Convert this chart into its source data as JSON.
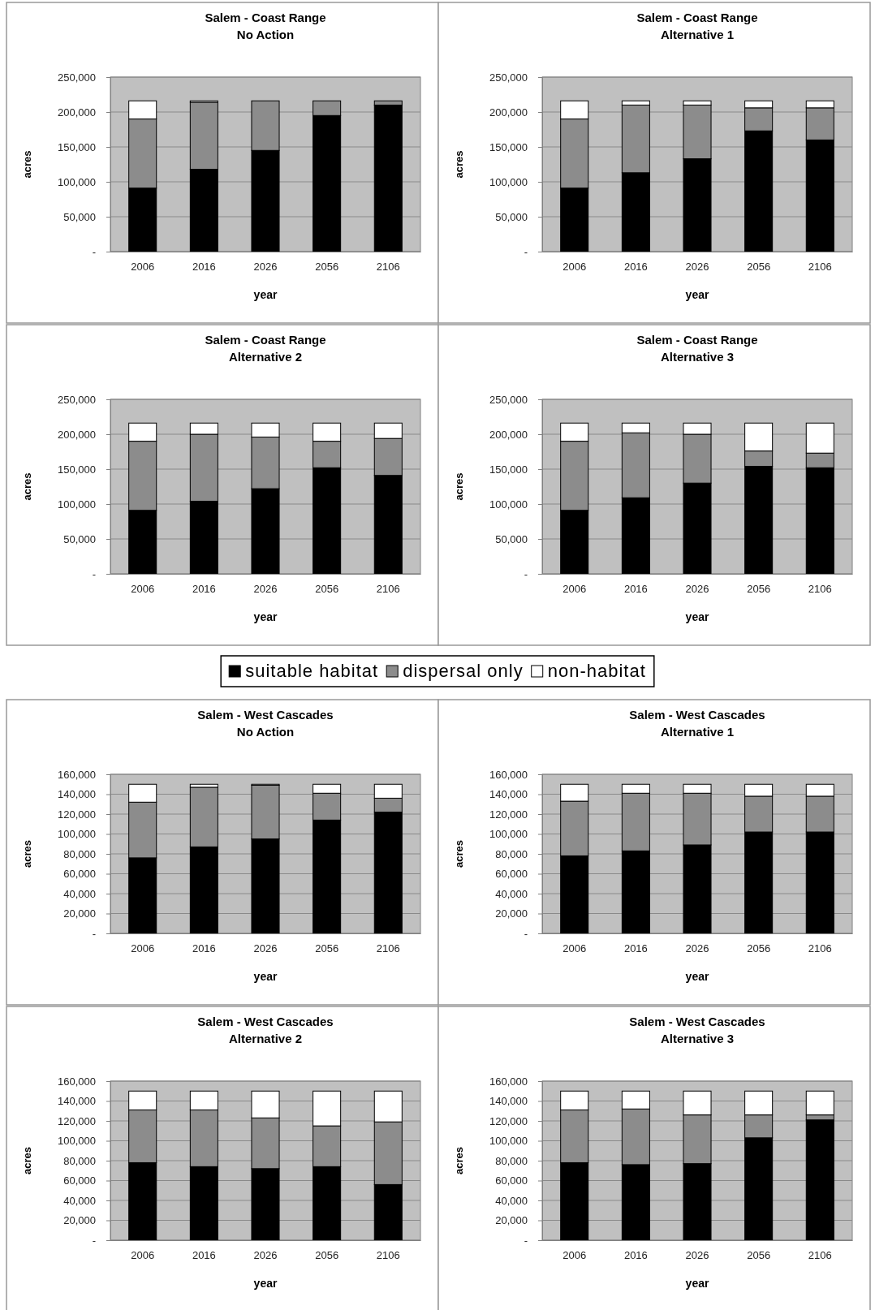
{
  "chart_data": [
    {
      "type": "bar",
      "stacked": true,
      "title": "Salem - Coast Range\nNo Action",
      "xlabel": "year",
      "ylabel": "acres",
      "categories": [
        "2006",
        "2016",
        "2026",
        "2056",
        "2106"
      ],
      "ylim": [
        0,
        250000
      ],
      "yticks": [
        {
          "value": 0,
          "label": "-"
        },
        {
          "value": 50000,
          "label": "50,000"
        },
        {
          "value": 100000,
          "label": "100,000"
        },
        {
          "value": 150000,
          "label": "150,000"
        },
        {
          "value": 200000,
          "label": "200,000"
        },
        {
          "value": 250000,
          "label": "250,000"
        }
      ],
      "grid": "y",
      "series": [
        {
          "color": "#000000",
          "values": [
            91000,
            118000,
            145000,
            195000,
            210000
          ]
        },
        {
          "color": "#8c8c8c",
          "values": [
            99000,
            96000,
            71000,
            21000,
            6000
          ]
        },
        {
          "color": "#ffffff",
          "values": [
            26000,
            2000,
            0,
            0,
            0
          ]
        }
      ]
    },
    {
      "type": "bar",
      "stacked": true,
      "title": "Salem - Coast Range\nAlternative 1",
      "xlabel": "year",
      "ylabel": "acres",
      "categories": [
        "2006",
        "2016",
        "2026",
        "2056",
        "2106"
      ],
      "ylim": [
        0,
        250000
      ],
      "yticks": [
        {
          "value": 0,
          "label": "-"
        },
        {
          "value": 50000,
          "label": "50,000"
        },
        {
          "value": 100000,
          "label": "100,000"
        },
        {
          "value": 150000,
          "label": "150,000"
        },
        {
          "value": 200000,
          "label": "200,000"
        },
        {
          "value": 250000,
          "label": "250,000"
        }
      ],
      "grid": "y",
      "series": [
        {
          "color": "#000000",
          "values": [
            91000,
            113000,
            133000,
            173000,
            160000
          ]
        },
        {
          "color": "#8c8c8c",
          "values": [
            99000,
            97000,
            77000,
            33000,
            46000
          ]
        },
        {
          "color": "#ffffff",
          "values": [
            26000,
            6000,
            6000,
            10000,
            10000
          ]
        }
      ]
    },
    {
      "type": "bar",
      "stacked": true,
      "title": "Salem - Coast Range\nAlternative 2",
      "xlabel": "year",
      "ylabel": "acres",
      "categories": [
        "2006",
        "2016",
        "2026",
        "2056",
        "2106"
      ],
      "ylim": [
        0,
        250000
      ],
      "yticks": [
        {
          "value": 0,
          "label": "-"
        },
        {
          "value": 50000,
          "label": "50,000"
        },
        {
          "value": 100000,
          "label": "100,000"
        },
        {
          "value": 150000,
          "label": "150,000"
        },
        {
          "value": 200000,
          "label": "200,000"
        },
        {
          "value": 250000,
          "label": "250,000"
        }
      ],
      "grid": "y",
      "series": [
        {
          "color": "#000000",
          "values": [
            91000,
            104000,
            122000,
            152000,
            141000
          ]
        },
        {
          "color": "#8c8c8c",
          "values": [
            99000,
            96000,
            74000,
            38000,
            53000
          ]
        },
        {
          "color": "#ffffff",
          "values": [
            26000,
            16000,
            20000,
            26000,
            22000
          ]
        }
      ]
    },
    {
      "type": "bar",
      "stacked": true,
      "title": "Salem - Coast Range\nAlternative 3",
      "xlabel": "year",
      "ylabel": "acres",
      "categories": [
        "2006",
        "2016",
        "2026",
        "2056",
        "2106"
      ],
      "ylim": [
        0,
        250000
      ],
      "yticks": [
        {
          "value": 0,
          "label": "-"
        },
        {
          "value": 50000,
          "label": "50,000"
        },
        {
          "value": 100000,
          "label": "100,000"
        },
        {
          "value": 150000,
          "label": "150,000"
        },
        {
          "value": 200000,
          "label": "200,000"
        },
        {
          "value": 250000,
          "label": "250,000"
        }
      ],
      "grid": "y",
      "legend": "bottom",
      "series": [
        {
          "name": "suitable habitat",
          "color": "#000000",
          "values": [
            91000,
            109000,
            130000,
            154000,
            152000
          ]
        },
        {
          "name": "dispersal only",
          "color": "#8c8c8c",
          "values": [
            99000,
            93000,
            70000,
            22000,
            21000
          ]
        },
        {
          "name": "non-habitat",
          "color": "#ffffff",
          "values": [
            26000,
            14000,
            16000,
            40000,
            43000
          ]
        }
      ]
    },
    {
      "type": "bar",
      "stacked": true,
      "title": "Salem - West Cascades\nNo Action",
      "xlabel": "year",
      "ylabel": "acres",
      "categories": [
        "2006",
        "2016",
        "2026",
        "2056",
        "2106"
      ],
      "ylim": [
        0,
        160000
      ],
      "yticks": [
        {
          "value": 0,
          "label": "-"
        },
        {
          "value": 20000,
          "label": "20,000"
        },
        {
          "value": 40000,
          "label": "40,000"
        },
        {
          "value": 60000,
          "label": "60,000"
        },
        {
          "value": 80000,
          "label": "80,000"
        },
        {
          "value": 100000,
          "label": "100,000"
        },
        {
          "value": 120000,
          "label": "120,000"
        },
        {
          "value": 140000,
          "label": "140,000"
        },
        {
          "value": 160000,
          "label": "160,000"
        }
      ],
      "grid": "y",
      "series": [
        {
          "color": "#000000",
          "values": [
            76000,
            87000,
            95000,
            114000,
            122000
          ]
        },
        {
          "color": "#8c8c8c",
          "values": [
            56000,
            60000,
            54000,
            27000,
            14000
          ]
        },
        {
          "color": "#ffffff",
          "values": [
            18000,
            3000,
            1000,
            9000,
            14000
          ]
        }
      ]
    },
    {
      "type": "bar",
      "stacked": true,
      "title": "Salem - West Cascades\nAlternative 1",
      "xlabel": "year",
      "ylabel": "acres",
      "categories": [
        "2006",
        "2016",
        "2026",
        "2056",
        "2106"
      ],
      "ylim": [
        0,
        160000
      ],
      "yticks": [
        {
          "value": 0,
          "label": "-"
        },
        {
          "value": 20000,
          "label": "20,000"
        },
        {
          "value": 40000,
          "label": "40,000"
        },
        {
          "value": 60000,
          "label": "60,000"
        },
        {
          "value": 80000,
          "label": "80,000"
        },
        {
          "value": 100000,
          "label": "100,000"
        },
        {
          "value": 120000,
          "label": "120,000"
        },
        {
          "value": 140000,
          "label": "140,000"
        },
        {
          "value": 160000,
          "label": "160,000"
        }
      ],
      "grid": "y",
      "series": [
        {
          "color": "#000000",
          "values": [
            78000,
            83000,
            89000,
            102000,
            102000
          ]
        },
        {
          "color": "#8c8c8c",
          "values": [
            55000,
            58000,
            52000,
            36000,
            36000
          ]
        },
        {
          "color": "#ffffff",
          "values": [
            17000,
            9000,
            9000,
            12000,
            12000
          ]
        }
      ]
    },
    {
      "type": "bar",
      "stacked": true,
      "title": "Salem - West Cascades\nAlternative 2",
      "xlabel": "year",
      "ylabel": "acres",
      "categories": [
        "2006",
        "2016",
        "2026",
        "2056",
        "2106"
      ],
      "ylim": [
        0,
        160000
      ],
      "yticks": [
        {
          "value": 0,
          "label": "-"
        },
        {
          "value": 20000,
          "label": "20,000"
        },
        {
          "value": 40000,
          "label": "40,000"
        },
        {
          "value": 60000,
          "label": "60,000"
        },
        {
          "value": 80000,
          "label": "80,000"
        },
        {
          "value": 100000,
          "label": "100,000"
        },
        {
          "value": 120000,
          "label": "120,000"
        },
        {
          "value": 140000,
          "label": "140,000"
        },
        {
          "value": 160000,
          "label": "160,000"
        }
      ],
      "grid": "y",
      "series": [
        {
          "color": "#000000",
          "values": [
            78000,
            74000,
            72000,
            74000,
            56000
          ]
        },
        {
          "color": "#8c8c8c",
          "values": [
            53000,
            57000,
            51000,
            41000,
            63000
          ]
        },
        {
          "color": "#ffffff",
          "values": [
            19000,
            19000,
            27000,
            35000,
            31000
          ]
        }
      ]
    },
    {
      "type": "bar",
      "stacked": true,
      "title": "Salem - West Cascades\nAlternative 3",
      "xlabel": "year",
      "ylabel": "acres",
      "categories": [
        "2006",
        "2016",
        "2026",
        "2056",
        "2106"
      ],
      "ylim": [
        0,
        160000
      ],
      "yticks": [
        {
          "value": 0,
          "label": "-"
        },
        {
          "value": 20000,
          "label": "20,000"
        },
        {
          "value": 40000,
          "label": "40,000"
        },
        {
          "value": 60000,
          "label": "60,000"
        },
        {
          "value": 80000,
          "label": "80,000"
        },
        {
          "value": 100000,
          "label": "100,000"
        },
        {
          "value": 120000,
          "label": "120,000"
        },
        {
          "value": 140000,
          "label": "140,000"
        },
        {
          "value": 160000,
          "label": "160,000"
        }
      ],
      "grid": "y",
      "series": [
        {
          "color": "#000000",
          "values": [
            78000,
            76000,
            77000,
            103000,
            121000
          ]
        },
        {
          "color": "#8c8c8c",
          "values": [
            53000,
            56000,
            49000,
            23000,
            5000
          ]
        },
        {
          "color": "#ffffff",
          "values": [
            19000,
            18000,
            24000,
            24000,
            24000
          ]
        }
      ]
    }
  ]
}
